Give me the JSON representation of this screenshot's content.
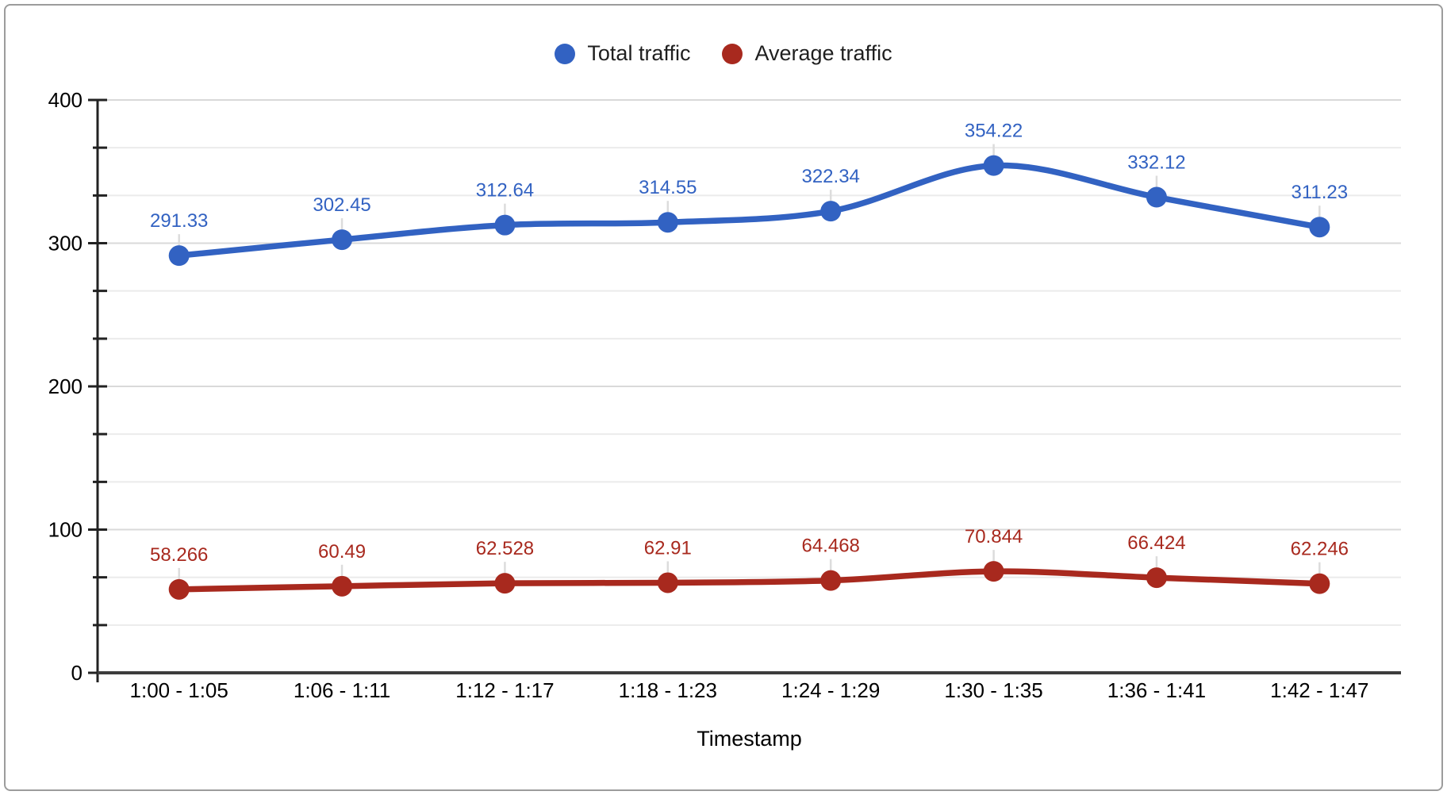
{
  "chart_data": {
    "type": "line",
    "smooth": true,
    "title": "",
    "xlabel": "Timestamp",
    "ylabel": "",
    "ylim": [
      0,
      400
    ],
    "y_major_step": 100,
    "y_minor_divisions": 3,
    "y_tick_labels": [
      "0",
      "100",
      "200",
      "300",
      "400"
    ],
    "grid": true,
    "legend_position": "top-center",
    "categories": [
      "1:00 - 1:05",
      "1:06 - 1:11",
      "1:12 - 1:17",
      "1:18 - 1:23",
      "1:24 - 1:29",
      "1:30 - 1:35",
      "1:36 - 1:41",
      "1:42 - 1:47"
    ],
    "series": [
      {
        "name": "Total traffic",
        "color": "#3262C2",
        "values": [
          291.33,
          302.45,
          312.64,
          314.55,
          322.34,
          354.22,
          332.12,
          311.23
        ]
      },
      {
        "name": "Average traffic",
        "color": "#A8291E",
        "values": [
          58.266,
          60.49,
          62.528,
          62.91,
          64.468,
          70.844,
          66.424,
          62.246
        ]
      }
    ],
    "colors": {
      "axis": "#222222",
      "x_axis": "#3d3d3d",
      "major_gridline": "#d9d9d9",
      "minor_gridline": "#ebebeb",
      "leader_line": "#dcdcdc",
      "tick_label": "#000000"
    }
  }
}
